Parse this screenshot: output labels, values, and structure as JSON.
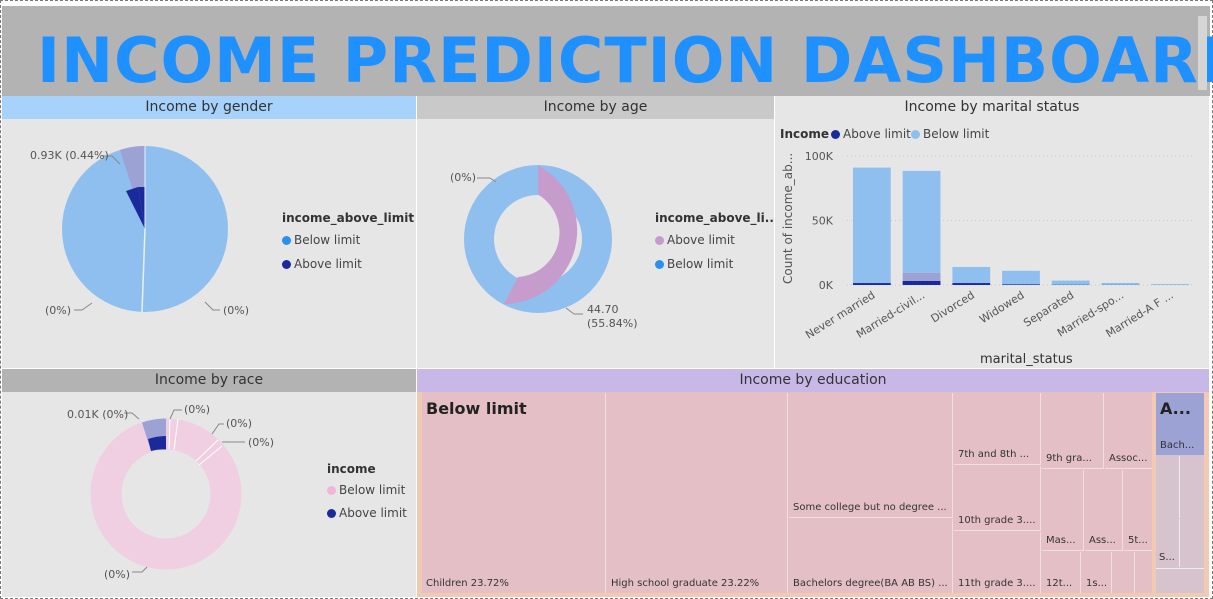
{
  "dashboard": {
    "title": "INCOME PREDICTION DASHBOARD"
  },
  "colors": {
    "title": "#1e90ff",
    "below_light": "#8fbfef",
    "below_blue": "#2b8ff0",
    "above_dark": "#1a2a9a",
    "purple": "#c59ccc",
    "pink_light": "#f0cfe3",
    "lavender": "#9da2d4"
  },
  "gender": {
    "title": "Income by gender",
    "legend_title": "income_above_limit",
    "legend": [
      "Below limit",
      "Above limit"
    ],
    "labels": {
      "top": "0.93K (0.44%)",
      "left": "(0%)",
      "right": "(0%)"
    }
  },
  "age": {
    "title": "Income by age",
    "legend_title": "income_above_li...",
    "legend": [
      "Above limit",
      "Below limit"
    ],
    "labels": {
      "top": "(0%)",
      "value": "44.70",
      "pct": "(55.84%)"
    }
  },
  "marital": {
    "title": "Income by marital status",
    "legend_title": "Income",
    "legend": [
      "Above limit",
      "Below limit"
    ],
    "ylabel": "Count of income_ab...",
    "xlabel": "marital_status",
    "yticks": [
      "100K",
      "50K",
      "0K"
    ]
  },
  "race": {
    "title": "Income by race",
    "legend_title": "income",
    "legend": [
      "Below limit",
      "Above limit"
    ],
    "labels": {
      "topleft": "0.01K (0%)",
      "t1": "(0%)",
      "t2": "(0%)",
      "t3": "(0%)",
      "bottom": "(0%)"
    }
  },
  "education": {
    "title": "Income by education",
    "header_below": "Below limit",
    "header_above": "A...",
    "cells": {
      "children": "Children 23.72%",
      "hs": "High school graduate 23.22%",
      "somecollege": "Some college but no degree ...",
      "bachelors": "Bachelors degree(BA AB BS) ...",
      "g78": "7th and 8th ...",
      "g10": "10th grade 3....",
      "g11": "11th grade 3....",
      "g9": "9th gra...",
      "assoc": "Assoc...",
      "mas": "Mas...",
      "ass": "Ass...",
      "g5": "5t...",
      "g12": "12t...",
      "g1": "1s...",
      "bach": "Bach...",
      "s": "S..."
    }
  },
  "chart_data": [
    {
      "type": "bar",
      "title": "Income by marital status",
      "xlabel": "marital_status",
      "ylabel": "Count of income_ab...",
      "categories": [
        "Never married",
        "Married-civil...",
        "Divorced",
        "Widowed",
        "Separated",
        "Married-spo...",
        "Married-A F ..."
      ],
      "series": [
        {
          "name": "Below limit",
          "values": [
            89500,
            79000,
            12500,
            10500,
            3200,
            1500,
            600
          ]
        },
        {
          "name": "Above limit",
          "values": [
            1500,
            9500,
            1500,
            500,
            200,
            100,
            50
          ]
        }
      ],
      "ylim": [
        0,
        100000
      ],
      "yticks": [
        "100K",
        "50K",
        "0K"
      ],
      "grid": true,
      "legend_placement": "top"
    }
  ]
}
